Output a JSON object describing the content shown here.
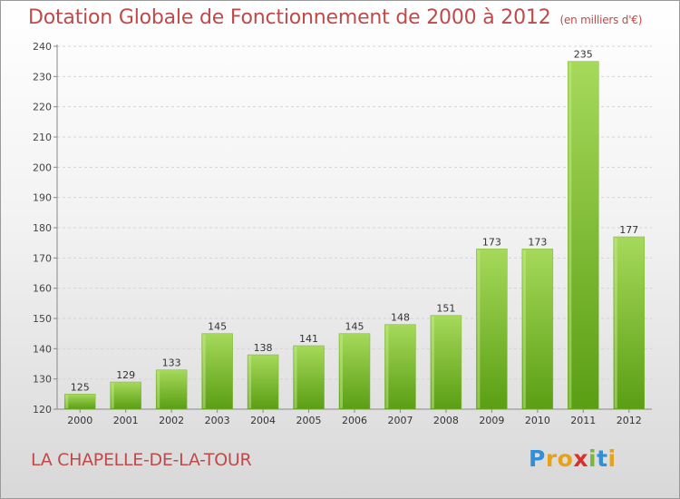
{
  "header": {
    "title": "Dotation Globale de Fonctionnement de 2000 à 2012",
    "unit": "(en milliers d'€)"
  },
  "footer": {
    "commune": "LA CHAPELLE-DE-LA-TOUR",
    "logo_letters": [
      "P",
      "r",
      "o",
      "x",
      "i",
      "t",
      "i"
    ],
    "logo_colors": [
      "#2f8fd8",
      "#e8a21a",
      "#e8a21a",
      "#d8302a",
      "#7ab83a",
      "#2f8fd8",
      "#e8a21a"
    ]
  },
  "colors": {
    "bar_light": "#a6d95a",
    "bar_dark": "#5a9e14",
    "title": "#c04a4a"
  },
  "chart_data": {
    "type": "bar",
    "title": "Dotation Globale de Fonctionnement de 2000 à 2012",
    "subtitle": "(en milliers d'€)",
    "categories": [
      "2000",
      "2001",
      "2002",
      "2003",
      "2004",
      "2005",
      "2006",
      "2007",
      "2008",
      "2009",
      "2010",
      "2011",
      "2012"
    ],
    "values": [
      125,
      129,
      133,
      145,
      138,
      141,
      145,
      148,
      151,
      173,
      173,
      235,
      177
    ],
    "ylim": [
      120,
      240
    ],
    "yticks": [
      120,
      130,
      140,
      150,
      160,
      170,
      180,
      190,
      200,
      210,
      220,
      230,
      240
    ],
    "grid": true,
    "data_labels": true
  }
}
